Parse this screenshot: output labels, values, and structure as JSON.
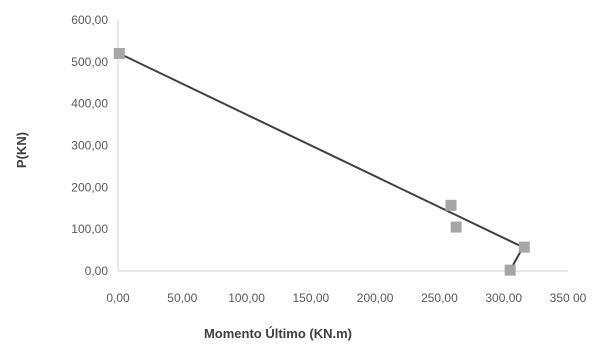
{
  "chart_data": {
    "type": "scatter",
    "title": "",
    "xlabel": "Momento Último (KN.m)",
    "ylabel": "P(KN)",
    "xlim": [
      0,
      350
    ],
    "ylim": [
      0,
      600
    ],
    "x_ticks": [
      0,
      50,
      100,
      150,
      200,
      250,
      300,
      350
    ],
    "x_tick_labels": [
      "0,00",
      "50,00",
      "100,00",
      "150,00",
      "200,00",
      "250,00",
      "300,00",
      "350 00"
    ],
    "y_ticks": [
      0,
      100,
      200,
      300,
      400,
      500,
      600
    ],
    "y_tick_labels": [
      "0,00",
      "100,00",
      "200,00",
      "300,00",
      "400,00",
      "500,00",
      "600,00"
    ],
    "grid": false,
    "legend": "none",
    "series": [
      {
        "marker": "square",
        "color": "#a6a6a6",
        "points": [
          {
            "x": 1,
            "y": 520
          },
          {
            "x": 259,
            "y": 157
          },
          {
            "x": 263,
            "y": 105
          },
          {
            "x": 305,
            "y": 2
          },
          {
            "x": 316,
            "y": 57
          }
        ]
      }
    ],
    "lines": [
      {
        "color": "#404040",
        "points": [
          {
            "x": 1,
            "y": 520
          },
          {
            "x": 315,
            "y": 57
          },
          {
            "x": 305,
            "y": 2
          }
        ]
      }
    ],
    "colors": {
      "axis": "#d9d9d9",
      "tick_text": "#595959",
      "title_text": "#404040"
    }
  }
}
